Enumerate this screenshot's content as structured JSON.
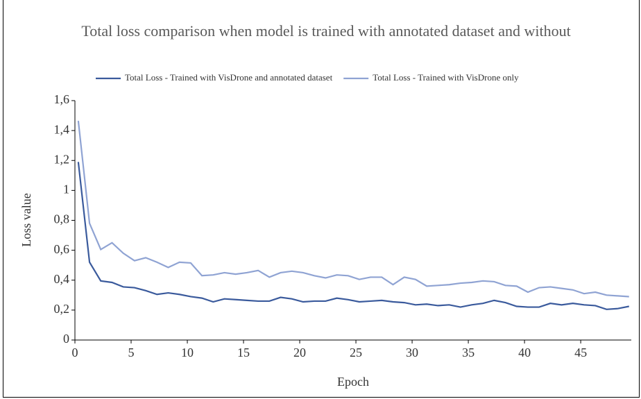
{
  "chart_data": {
    "type": "line",
    "title": "Total loss comparison when model is trained with annotated dataset and without",
    "x_label": "Epoch",
    "y_label": "Loss value",
    "x": [
      0.3,
      1.3,
      2.3,
      3.3,
      4.3,
      5.3,
      6.3,
      7.3,
      8.3,
      9.3,
      10.3,
      11.3,
      12.3,
      13.3,
      14.3,
      15.3,
      16.3,
      17.3,
      18.3,
      19.3,
      20.3,
      21.3,
      22.3,
      23.3,
      24.3,
      25.3,
      26.3,
      27.3,
      28.3,
      29.3,
      30.3,
      31.3,
      32.3,
      33.3,
      34.3,
      35.3,
      36.3,
      37.3,
      38.3,
      39.3,
      40.3,
      41.3,
      42.3,
      43.3,
      44.3,
      45.3,
      46.3,
      47.3,
      48.3,
      49.3
    ],
    "series": [
      {
        "name": "Total Loss - Trained with VisDrone and annotated dataset",
        "color": "#3a5a9c",
        "values": [
          1.19,
          0.52,
          0.395,
          0.385,
          0.355,
          0.35,
          0.33,
          0.305,
          0.315,
          0.305,
          0.29,
          0.28,
          0.255,
          0.275,
          0.27,
          0.265,
          0.26,
          0.26,
          0.285,
          0.275,
          0.255,
          0.26,
          0.26,
          0.28,
          0.27,
          0.255,
          0.26,
          0.265,
          0.255,
          0.25,
          0.235,
          0.24,
          0.23,
          0.235,
          0.22,
          0.235,
          0.245,
          0.265,
          0.25,
          0.225,
          0.22,
          0.22,
          0.245,
          0.235,
          0.245,
          0.235,
          0.23,
          0.205,
          0.21,
          0.225
        ]
      },
      {
        "name": "Total Loss - Trained with VisDrone only",
        "color": "#8fa3d3",
        "values": [
          1.465,
          0.78,
          0.605,
          0.65,
          0.58,
          0.53,
          0.55,
          0.52,
          0.485,
          0.52,
          0.515,
          0.43,
          0.435,
          0.45,
          0.44,
          0.45,
          0.465,
          0.42,
          0.45,
          0.46,
          0.45,
          0.43,
          0.415,
          0.435,
          0.43,
          0.405,
          0.42,
          0.42,
          0.37,
          0.42,
          0.405,
          0.36,
          0.365,
          0.37,
          0.38,
          0.385,
          0.395,
          0.39,
          0.365,
          0.36,
          0.32,
          0.35,
          0.355,
          0.345,
          0.335,
          0.31,
          0.32,
          0.3,
          0.295,
          0.29
        ]
      }
    ],
    "xlim": [
      0,
      49.5
    ],
    "xticks": [
      0,
      5,
      10,
      15,
      20,
      25,
      30,
      35,
      40,
      45
    ],
    "ylim": [
      0,
      1.6
    ],
    "yticks": [
      0,
      {
        "value": 0.2,
        "label": "0,2"
      },
      {
        "value": 0.4,
        "label": "0,4"
      },
      {
        "value": 0.6,
        "label": "0,6"
      },
      {
        "value": 0.8,
        "label": "0,8"
      },
      1,
      {
        "value": 1.2,
        "label": "1,2"
      },
      {
        "value": 1.4,
        "label": "1,4"
      },
      {
        "value": 1.6,
        "label": "1,6"
      }
    ],
    "legend": "top",
    "grid": false
  }
}
